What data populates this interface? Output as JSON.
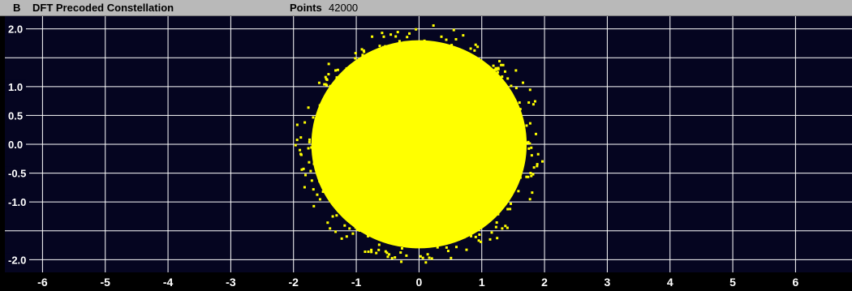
{
  "header": {
    "panel_letter": "B",
    "title": "DFT Precoded Constellation",
    "points_label": "Points",
    "points_value": "42000"
  },
  "colors": {
    "background": "#000000",
    "plot_background": "#050520",
    "grid": "#ffffff",
    "points": "#ffff00",
    "header_bar": "#b9b9b9"
  },
  "chart_data": {
    "type": "scatter",
    "title": "DFT Precoded Constellation",
    "xlabel": "",
    "ylabel": "",
    "xlim": [
      -6.6,
      6.9
    ],
    "ylim": [
      -2.22,
      2.22
    ],
    "x_ticks": [
      -6,
      -5,
      -4,
      -3,
      -2,
      -1,
      0,
      1,
      2,
      3,
      4,
      5,
      6
    ],
    "x_tick_labels": [
      "-6",
      "-5",
      "-4",
      "-3",
      "-2",
      "-1",
      "0",
      "1",
      "2",
      "3",
      "4",
      "5",
      "6"
    ],
    "y_gridlines": [
      2.0,
      1.5,
      1.0,
      0.5,
      0.0,
      -0.5,
      -1.0,
      -1.5,
      -2.0
    ],
    "y_tick_labels": [
      {
        "value": 2.0,
        "label": "2.0"
      },
      {
        "value": 1.0,
        "label": "1.0"
      },
      {
        "value": 0.5,
        "label": "0.5"
      },
      {
        "value": 0.0,
        "label": "0.0"
      },
      {
        "value": -0.5,
        "label": "-0.5"
      },
      {
        "value": -1.0,
        "label": "-1.0"
      },
      {
        "value": -2.0,
        "label": "-2.0"
      }
    ],
    "grid": true,
    "points_shown": 42000,
    "cloud_center": [
      0.0,
      0.0
    ],
    "cloud_radius_x": 1.95,
    "cloud_radius_y": 2.05,
    "point_color": "#ffff00"
  }
}
